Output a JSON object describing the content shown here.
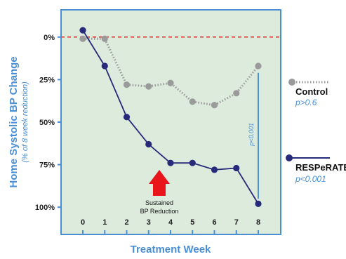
{
  "chart_data": {
    "type": "line",
    "xlabel": "Treatment Week",
    "ylabel": "Home Systolic BP Change",
    "ylabel_sub": "(% of 8 week  reduction)",
    "x": [
      0,
      1,
      2,
      3,
      4,
      5,
      6,
      7,
      8
    ],
    "x_tick_labels": [
      "0",
      "1",
      "2",
      "3",
      "4",
      "5",
      "6",
      "7",
      "8"
    ],
    "y_tick_labels": [
      "0%",
      "25%",
      "50%",
      "75%",
      "100%"
    ],
    "y_tick_values": [
      0,
      25,
      50,
      75,
      100
    ],
    "ylim": [
      -16,
      116
    ],
    "y_inverted": true,
    "grid": false,
    "background_color": "#dcebdc",
    "frame_color": "#4a8fd4",
    "zero_line_color": "#e32222",
    "series": [
      {
        "name": "Control",
        "p_label": "p>0.6",
        "values": [
          1,
          1,
          28,
          29,
          27,
          38,
          40,
          33,
          17
        ],
        "color": "#9a9a9a",
        "line_style": "dotted"
      },
      {
        "name": "RESPeRATE",
        "p_label": "p<0.001",
        "values": [
          -4,
          17,
          47,
          63,
          74,
          74,
          78,
          77,
          98
        ],
        "color": "#27297a",
        "line_style": "solid"
      }
    ],
    "annotations": {
      "arrow_text_line1": "Sustained",
      "arrow_text_line2": "BP Reduction",
      "arrow_x": 3.5,
      "arrow_color": "#e8151b",
      "bracket_label": "p<0.001",
      "bracket_x": 8,
      "bracket_y_from": 21,
      "bracket_y_to": 95,
      "bracket_color": "#4a8fd4"
    },
    "legend_placement": "right"
  }
}
